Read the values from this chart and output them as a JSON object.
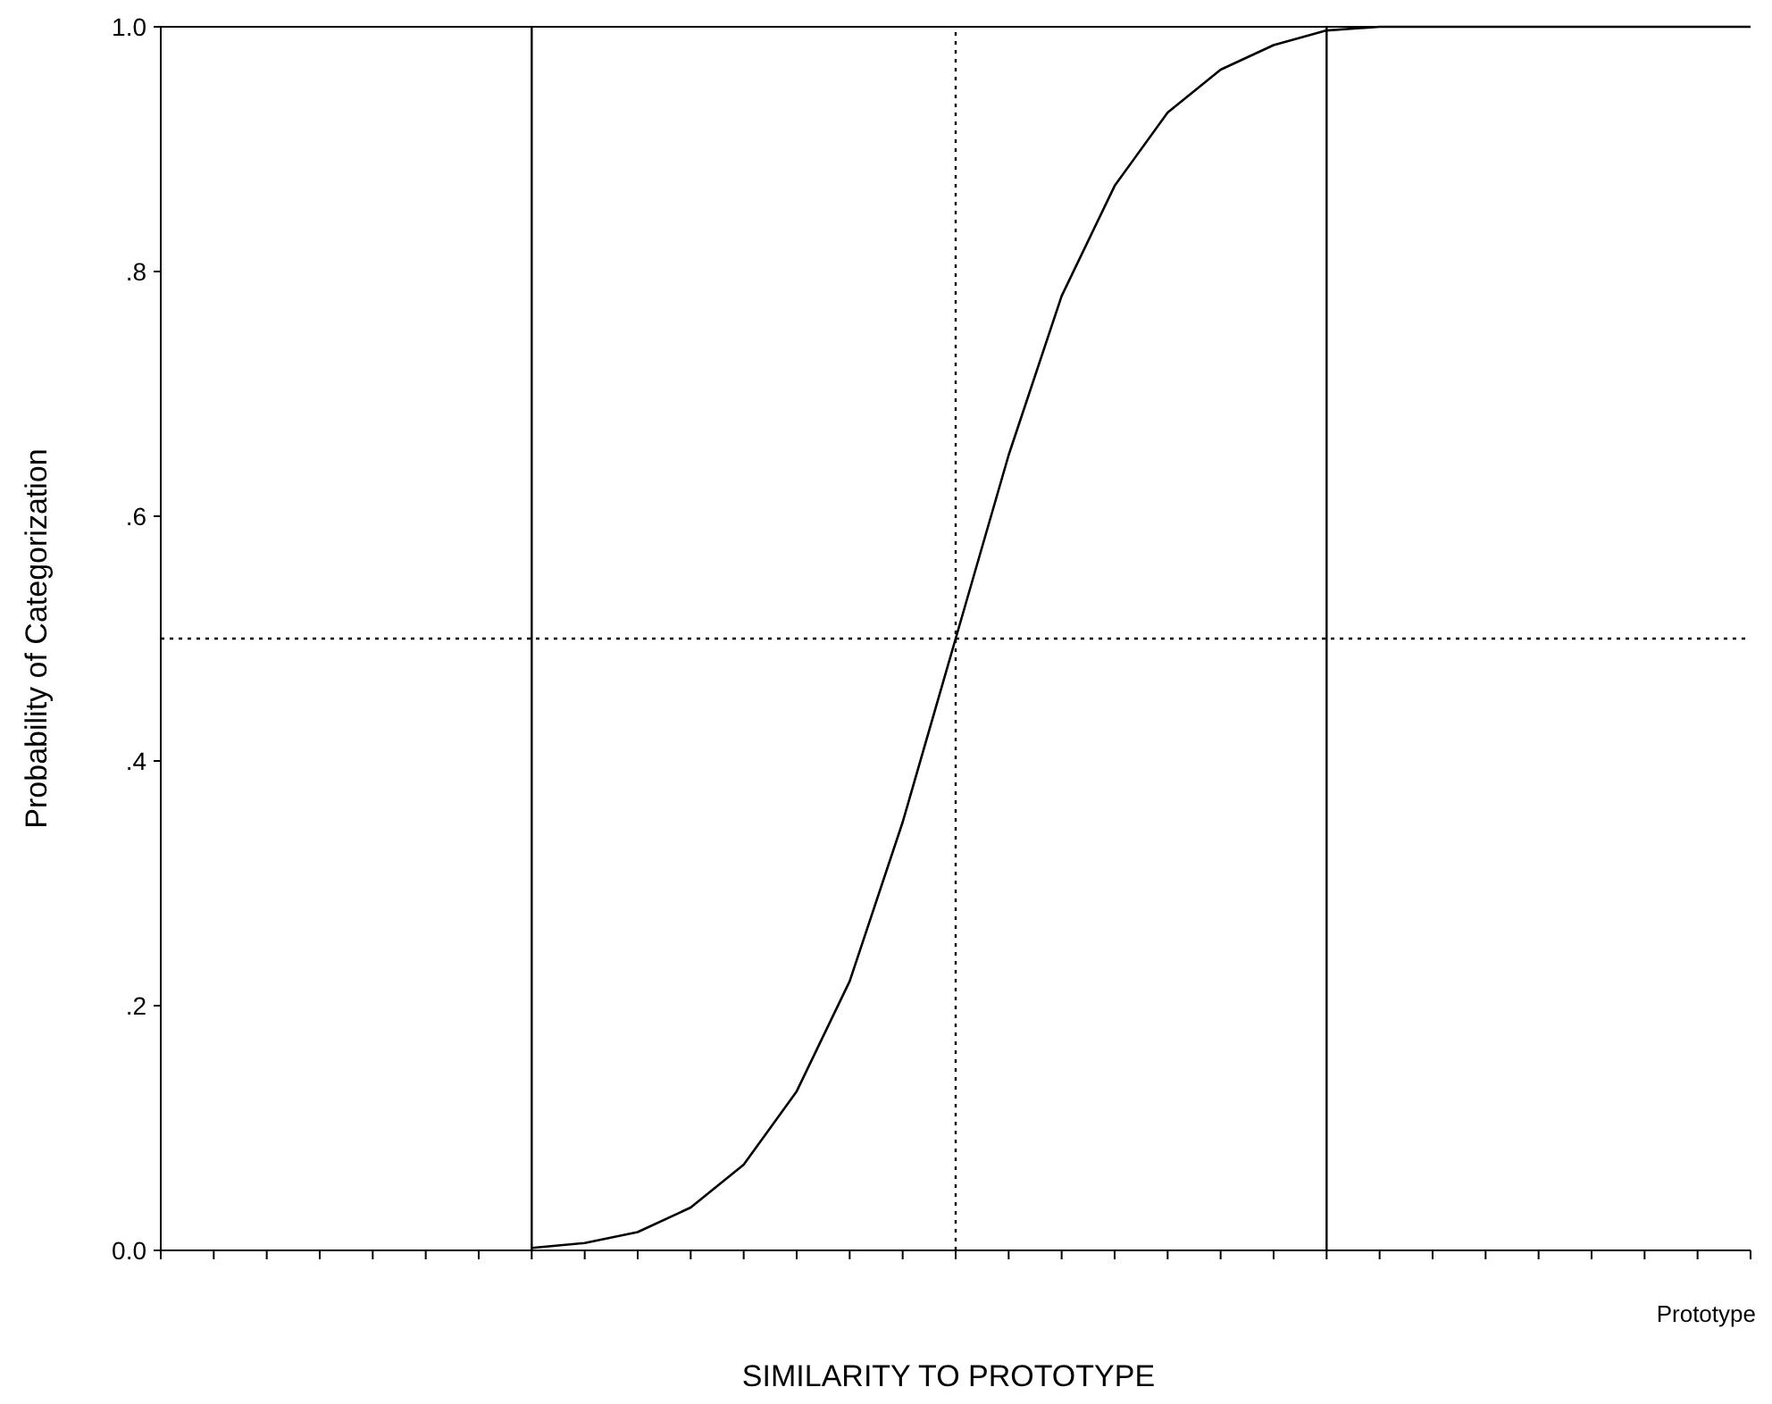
{
  "chart_data": {
    "type": "line",
    "xlabel": "SIMILARITY TO PROTOTYPE",
    "ylabel": "Probability of Categorization",
    "annotations": [
      "Prototype"
    ],
    "categories": [
      null,
      null,
      null,
      null,
      null,
      null,
      null,
      null,
      null,
      null,
      null,
      null,
      null,
      null,
      null,
      null,
      null,
      null,
      null,
      null,
      null,
      null,
      null,
      null,
      null,
      null,
      null,
      null,
      null,
      null,
      null
    ],
    "series": [
      {
        "color": "#000000",
        "values": [
          null,
          null,
          null,
          null,
          null,
          null,
          null,
          0.002,
          0.006,
          0.015,
          0.035,
          0.07,
          0.13,
          0.22,
          0.35,
          0.5,
          0.65,
          0.78,
          0.87,
          0.93,
          0.965,
          0.985,
          0.997,
          1,
          1,
          1,
          1,
          1,
          1,
          1,
          1
        ]
      }
    ],
    "ylim": [
      0,
      1
    ],
    "yticks": [
      {
        "value": 0,
        "label": "0.0"
      },
      {
        "value": 0.2,
        "label": ".2"
      },
      {
        "value": 0.4,
        "label": ".4"
      },
      {
        "value": 0.6,
        "label": ".6"
      },
      {
        "value": 0.8,
        "label": ".8"
      },
      {
        "value": 1,
        "label": "1.0"
      }
    ],
    "ref_lines": [
      {
        "axis": "y",
        "value": 0.5,
        "line_style": "dotted"
      }
    ],
    "grid": false,
    "marker": "none",
    "line_style": "solid"
  }
}
